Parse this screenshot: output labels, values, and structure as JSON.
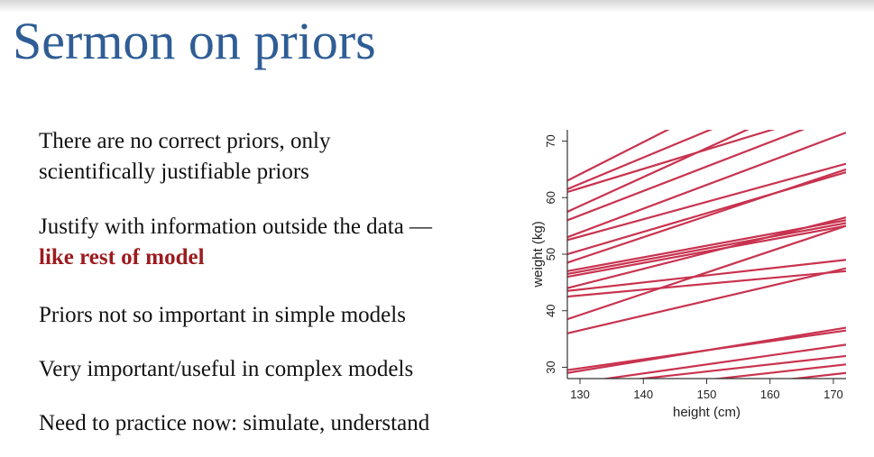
{
  "slide": {
    "title": "Sermon on priors",
    "bullets": [
      {
        "lines": [
          "There are no correct priors, only",
          "scientifically justifiable priors"
        ]
      },
      {
        "lines": [
          "Justify with information outside the data —"
        ],
        "emphasis": "like rest of model"
      },
      {
        "lines": [
          "Priors not so important in simple models"
        ]
      },
      {
        "lines": [
          "Very important/useful in complex models"
        ]
      },
      {
        "lines": [
          "Need to practice now: simulate, understand"
        ]
      }
    ],
    "emphasis_color": "#9b1b1e",
    "title_color": "#2f5d95"
  },
  "chart_data": {
    "type": "line",
    "title": "",
    "xlabel": "height (cm)",
    "ylabel": "weight (kg)",
    "xlim": [
      128,
      172
    ],
    "ylim": [
      28,
      72
    ],
    "xticks": [
      130,
      140,
      150,
      160,
      170
    ],
    "yticks": [
      30,
      40,
      50,
      60,
      70
    ],
    "grid": false,
    "line_color": "#c8334f",
    "lines": [
      {
        "x": [
          128,
          172
        ],
        "y": [
          63.0,
          88.0
        ]
      },
      {
        "x": [
          128,
          172
        ],
        "y": [
          61.5,
          82.0
        ]
      },
      {
        "x": [
          128,
          172
        ],
        "y": [
          61.0,
          76.0
        ]
      },
      {
        "x": [
          128,
          172
        ],
        "y": [
          57.5,
          80.0
        ]
      },
      {
        "x": [
          128,
          172
        ],
        "y": [
          56.0,
          75.0
        ]
      },
      {
        "x": [
          128,
          172
        ],
        "y": [
          53.0,
          71.5
        ]
      },
      {
        "x": [
          128,
          172
        ],
        "y": [
          52.5,
          66.0
        ]
      },
      {
        "x": [
          128,
          172
        ],
        "y": [
          50.0,
          64.5
        ]
      },
      {
        "x": [
          128,
          172
        ],
        "y": [
          48.5,
          65.0
        ]
      },
      {
        "x": [
          128,
          172
        ],
        "y": [
          47.0,
          56.0
        ]
      },
      {
        "x": [
          128,
          172
        ],
        "y": [
          46.5,
          55.5
        ]
      },
      {
        "x": [
          128,
          172
        ],
        "y": [
          46.0,
          55.0
        ]
      },
      {
        "x": [
          128,
          172
        ],
        "y": [
          44.0,
          56.5
        ]
      },
      {
        "x": [
          128,
          172
        ],
        "y": [
          43.5,
          49.0
        ]
      },
      {
        "x": [
          128,
          172
        ],
        "y": [
          42.5,
          47.0
        ]
      },
      {
        "x": [
          128,
          172
        ],
        "y": [
          38.5,
          55.0
        ]
      },
      {
        "x": [
          128,
          172
        ],
        "y": [
          36.0,
          47.5
        ]
      },
      {
        "x": [
          128,
          172
        ],
        "y": [
          29.5,
          36.5
        ]
      },
      {
        "x": [
          128,
          172
        ],
        "y": [
          29.0,
          37.0
        ]
      },
      {
        "x": [
          128,
          172
        ],
        "y": [
          27.0,
          34.0
        ]
      },
      {
        "x": [
          128,
          172
        ],
        "y": [
          26.5,
          32.0
        ]
      },
      {
        "x": [
          128,
          172
        ],
        "y": [
          25.0,
          30.5
        ]
      },
      {
        "x": [
          128,
          172
        ],
        "y": [
          23.5,
          29.0
        ]
      }
    ]
  }
}
